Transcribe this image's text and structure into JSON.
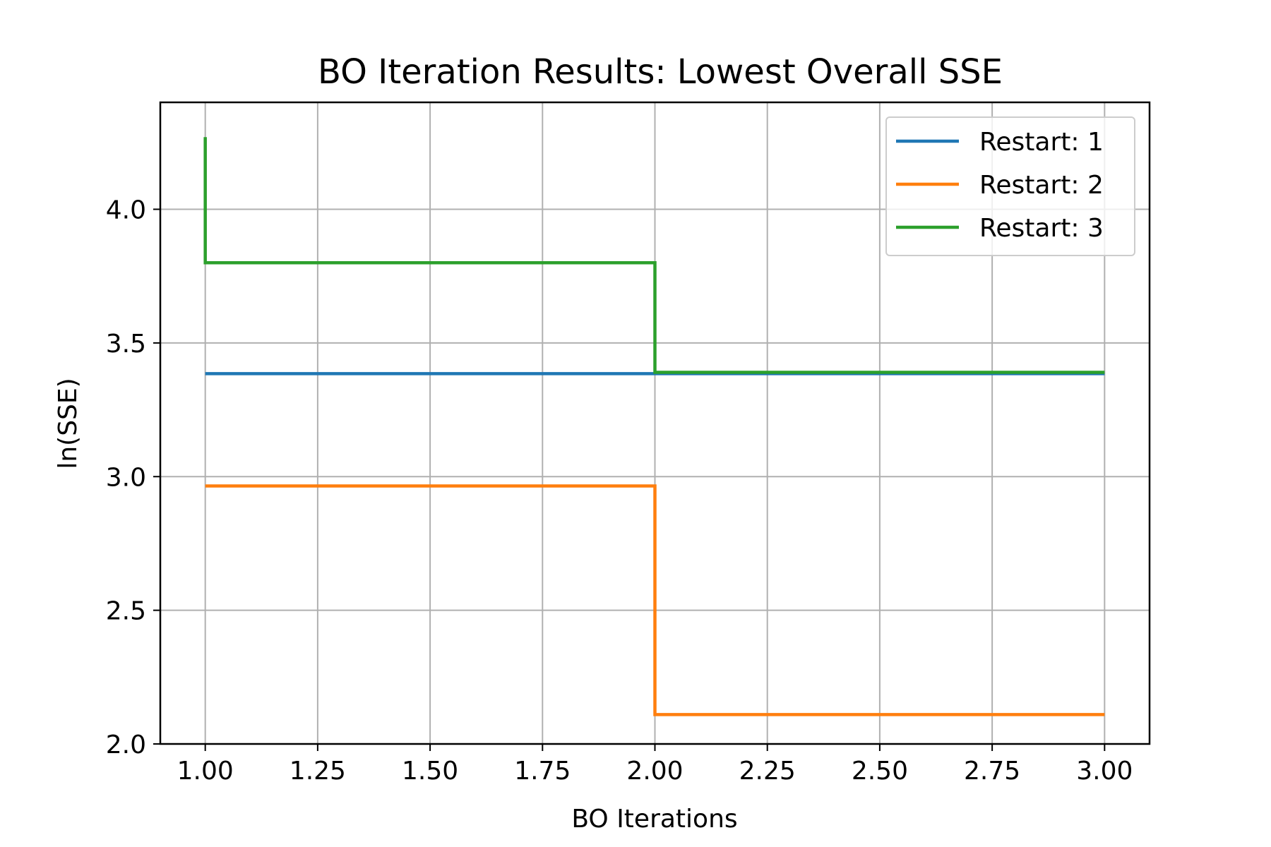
{
  "chart_data": {
    "type": "line",
    "title": "BO Iteration Results: Lowest Overall SSE",
    "xlabel": "BO Iterations",
    "ylabel": "ln(SSE)",
    "xlim": [
      0.9,
      3.1
    ],
    "ylim": [
      2.0,
      4.4
    ],
    "xticks": [
      1.0,
      1.25,
      1.5,
      1.75,
      2.0,
      2.25,
      2.5,
      2.75,
      3.0
    ],
    "xtick_labels": [
      "1.00",
      "1.25",
      "1.50",
      "1.75",
      "2.00",
      "2.25",
      "2.50",
      "2.75",
      "3.00"
    ],
    "yticks": [
      2.0,
      2.5,
      3.0,
      3.5,
      4.0
    ],
    "ytick_labels": [
      "2.0",
      "2.5",
      "3.0",
      "3.5",
      "4.0"
    ],
    "grid": true,
    "legend_position": "top-right",
    "step": "pre",
    "series": [
      {
        "name": "Restart: 1",
        "color": "#1f77b4",
        "x": [
          1,
          2,
          3
        ],
        "y": [
          3.385,
          3.385,
          3.385
        ]
      },
      {
        "name": "Restart: 2",
        "color": "#ff7f0e",
        "x": [
          1,
          2,
          3
        ],
        "y": [
          2.965,
          2.965,
          2.11
        ]
      },
      {
        "name": "Restart: 3",
        "color": "#2ca02c",
        "x": [
          1,
          1,
          2,
          3
        ],
        "y": [
          4.27,
          3.8,
          3.8,
          3.39
        ]
      }
    ]
  }
}
